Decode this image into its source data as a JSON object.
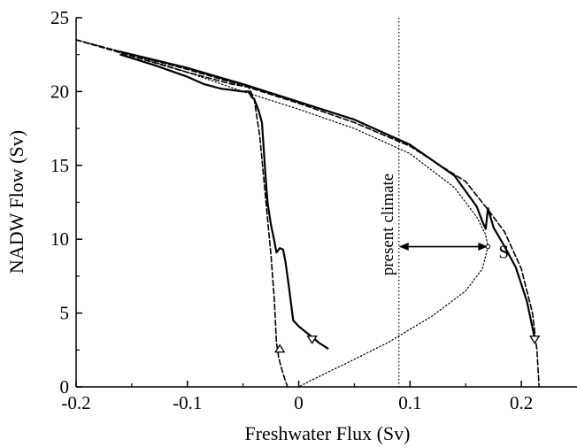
{
  "chart_data": {
    "type": "line",
    "title": "",
    "xlabel": "Freshwater  Flux  (Sv)",
    "ylabel": "NADW  Flow  (Sv)",
    "xlim": [
      -0.2,
      0.25
    ],
    "ylim": [
      0,
      25
    ],
    "x_ticks": [
      -0.2,
      -0.1,
      0,
      0.1,
      0.2
    ],
    "x_tick_labels": [
      "-0.2",
      "-0.1",
      "0",
      "0.1",
      "0.2"
    ],
    "y_ticks": [
      0,
      5,
      10,
      15,
      20,
      25
    ],
    "y_tick_labels": [
      "0",
      "5",
      "10",
      "15",
      "20",
      "25"
    ],
    "grid": false,
    "legend": "none",
    "series": [
      {
        "style": "solid",
        "x": [
          -0.16,
          -0.13,
          -0.1,
          -0.085,
          -0.07,
          -0.05,
          -0.045,
          -0.042,
          -0.04,
          -0.036,
          -0.033,
          -0.03,
          -0.028,
          -0.025,
          -0.022,
          -0.02,
          -0.017,
          -0.014,
          -0.012,
          -0.009,
          -0.005,
          0.0,
          0.005,
          0.01,
          0.018,
          0.026
        ],
        "y": [
          22.5,
          21.8,
          21.0,
          20.5,
          20.2,
          20.0,
          20.0,
          19.6,
          19.5,
          18.7,
          17.9,
          14.5,
          12.5,
          11.0,
          9.9,
          9.1,
          9.4,
          9.3,
          8.5,
          6.9,
          4.5,
          4.1,
          3.8,
          3.5,
          3.0,
          2.6
        ]
      },
      {
        "style": "solid",
        "x": [
          -0.16,
          -0.1,
          -0.05,
          0.0,
          0.05,
          0.1,
          0.14,
          0.16,
          0.165,
          0.168,
          0.17,
          0.175,
          0.185,
          0.195,
          0.205,
          0.212
        ],
        "y": [
          22.7,
          21.6,
          20.5,
          19.3,
          18.1,
          16.4,
          14.3,
          12.2,
          11.2,
          10.7,
          12.1,
          10.8,
          9.5,
          8.1,
          5.8,
          3.3
        ]
      },
      {
        "style": "dashed",
        "x": [
          -0.2,
          -0.15,
          -0.1,
          -0.06,
          -0.045,
          -0.04,
          -0.035,
          -0.03,
          -0.025,
          -0.022,
          -0.02,
          -0.018,
          -0.016,
          -0.014,
          -0.012,
          -0.01
        ],
        "y": [
          23.5,
          22.4,
          21.3,
          20.5,
          20.3,
          19.5,
          17.0,
          13.0,
          9.0,
          6.0,
          3.0,
          2.0,
          1.4,
          0.9,
          0.4,
          0.0
        ]
      },
      {
        "style": "dashed",
        "x": [
          -0.2,
          -0.15,
          -0.1,
          -0.05,
          0.0,
          0.05,
          0.1,
          0.15,
          0.17,
          0.185,
          0.2,
          0.21,
          0.214,
          0.216
        ],
        "y": [
          23.5,
          22.5,
          21.5,
          20.4,
          19.2,
          17.9,
          16.3,
          13.9,
          12.0,
          10.5,
          8.0,
          5.0,
          2.5,
          0.0
        ]
      },
      {
        "style": "dotted",
        "x": [
          -0.2,
          -0.15,
          -0.1,
          -0.05,
          0.0,
          0.05,
          0.1,
          0.14,
          0.16,
          0.168,
          0.17,
          0.165,
          0.15,
          0.12,
          0.08,
          0.04,
          0.01,
          0.0
        ],
        "y": [
          23.5,
          22.5,
          21.3,
          20.0,
          18.8,
          17.5,
          15.8,
          13.5,
          11.5,
          10.3,
          9.5,
          8.0,
          6.5,
          4.8,
          3.0,
          1.5,
          0.4,
          0.0
        ]
      }
    ],
    "triangles": [
      {
        "x": -0.017,
        "y": 2.6,
        "dir": "up"
      },
      {
        "x": 0.012,
        "y": 3.2,
        "dir": "down"
      },
      {
        "x": 0.212,
        "y": 3.2,
        "dir": "down"
      }
    ],
    "vertical_line": {
      "x": 0.09,
      "style": "dotted"
    },
    "annotations": [
      {
        "text": "present climate",
        "x": 0.09,
        "y": 11.0
      },
      {
        "text": "S",
        "x": 0.17,
        "y": 9.5
      }
    ],
    "arrow": {
      "x_from": 0.09,
      "x_to": 0.17,
      "y": 9.5
    }
  }
}
